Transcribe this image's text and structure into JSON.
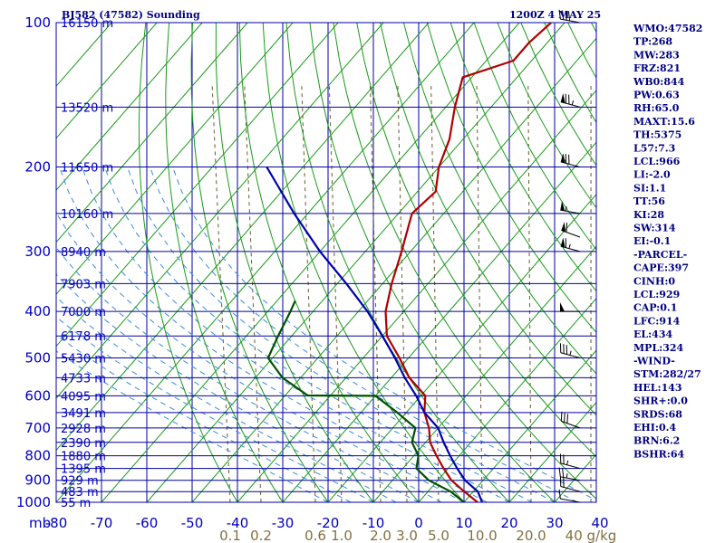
{
  "header": {
    "station": "BJ582 (47582) Sounding",
    "time": "1200Z  4 MAY 25"
  },
  "stats": [
    "WMO:47582",
    "TP:268",
    "MW:283",
    "FRZ:821",
    "WB0:844",
    "PW:0.63",
    "RH:65.0",
    "MAXT:15.6",
    "TH:5375",
    "L57:7.3",
    "LCL:966",
    "LI:-2.0",
    "SI:1.1",
    "TT:56",
    "KI:28",
    "SW:314",
    "EI:-0.1",
    "-PARCEL-",
    "CAPE:397",
    "CINH:0",
    "LCL:929",
    "CAP:0.1",
    "LFC:914",
    "EL:434",
    "MPL:324",
    "-WIND-",
    "STM:282/27",
    "HEL:143",
    "SHR+:0.0",
    "SRDS:68",
    "EHI:0.4",
    "BRN:6.2",
    "BSHR:64"
  ],
  "colors": {
    "isobar": "#0000a0",
    "isotherm": "#1a9a1a",
    "dry_adiabat": "#1a9a1a",
    "moist_adiabat": "#3a8ae0",
    "mixing_ratio": "#6a5a2a",
    "temperature": "#b00000",
    "dewpoint": "#005000",
    "parcel": "#0000b0",
    "wind_barb": "#000000"
  },
  "chart_data": {
    "type": "skew-t",
    "x_unit": "mb",
    "pressure_ticks": [
      100,
      200,
      300,
      400,
      500,
      600,
      700,
      800,
      900,
      1000
    ],
    "height_ticks": [
      {
        "p": 100,
        "label": "16150 m"
      },
      {
        "p": 150,
        "label": "13520 m"
      },
      {
        "p": 200,
        "label": "11650 m"
      },
      {
        "p": 250,
        "label": "10160 m"
      },
      {
        "p": 300,
        "label": "8940 m"
      },
      {
        "p": 350,
        "label": "7903 m"
      },
      {
        "p": 400,
        "label": "7000 m"
      },
      {
        "p": 450,
        "label": "6178 m"
      },
      {
        "p": 500,
        "label": "5430 m"
      },
      {
        "p": 550,
        "label": "4733 m"
      },
      {
        "p": 600,
        "label": "4095 m"
      },
      {
        "p": 650,
        "label": "3491 m"
      },
      {
        "p": 700,
        "label": "2928 m"
      },
      {
        "p": 750,
        "label": "2390 m"
      },
      {
        "p": 800,
        "label": "1880 m"
      },
      {
        "p": 850,
        "label": "1395 m"
      },
      {
        "p": 900,
        "label": "929 m"
      },
      {
        "p": 950,
        "label": "483 m"
      },
      {
        "p": 1000,
        "label": "55 m"
      }
    ],
    "temperature_ticks": [
      -80,
      -70,
      -60,
      -50,
      -40,
      -30,
      -20,
      -10,
      0,
      10,
      20,
      30,
      40
    ],
    "mixing_ratio_ticks": [
      {
        "label": "0.1",
        "x_at_bottom": 254
      },
      {
        "label": "0.2",
        "x_at_bottom": 288
      },
      {
        "label": "0.6",
        "x_at_bottom": 348
      },
      {
        "label": "1.0",
        "x_at_bottom": 377
      },
      {
        "label": "2.0",
        "x_at_bottom": 420
      },
      {
        "label": "3.0",
        "x_at_bottom": 449
      },
      {
        "label": "5.0",
        "x_at_bottom": 484
      },
      {
        "label": "10.0",
        "x_at_bottom": 532
      },
      {
        "label": "20.0",
        "x_at_bottom": 586
      },
      {
        "label": "40 g/kg",
        "x_at_bottom": 652
      }
    ],
    "series": [
      {
        "name": "temperature",
        "points": [
          [
            1000,
            13
          ],
          [
            950,
            8
          ],
          [
            900,
            3
          ],
          [
            850,
            -1
          ],
          [
            800,
            -5
          ],
          [
            750,
            -9
          ],
          [
            700,
            -12
          ],
          [
            650,
            -16
          ],
          [
            600,
            -19
          ],
          [
            550,
            -26
          ],
          [
            500,
            -32
          ],
          [
            450,
            -39
          ],
          [
            400,
            -44
          ],
          [
            350,
            -48
          ],
          [
            300,
            -52
          ],
          [
            250,
            -57
          ],
          [
            225,
            -56
          ],
          [
            200,
            -60
          ],
          [
            175,
            -63
          ],
          [
            150,
            -68
          ],
          [
            130,
            -72
          ],
          [
            120,
            -64
          ],
          [
            110,
            -64
          ],
          [
            100,
            -63
          ]
        ]
      },
      {
        "name": "dewpoint",
        "points": [
          [
            1000,
            10
          ],
          [
            950,
            5
          ],
          [
            900,
            -2
          ],
          [
            850,
            -7
          ],
          [
            800,
            -9
          ],
          [
            750,
            -13
          ],
          [
            700,
            -15
          ],
          [
            650,
            -22
          ],
          [
            600,
            -30
          ],
          [
            599,
            -45
          ],
          [
            550,
            -54
          ],
          [
            500,
            -61
          ],
          [
            450,
            -63
          ],
          [
            400,
            -65
          ],
          [
            380,
            -66
          ]
        ]
      },
      {
        "name": "parcel",
        "points": [
          [
            1000,
            14
          ],
          [
            950,
            11
          ],
          [
            900,
            6
          ],
          [
            850,
            2
          ],
          [
            800,
            -2
          ],
          [
            750,
            -6
          ],
          [
            700,
            -10
          ],
          [
            650,
            -16
          ],
          [
            600,
            -21
          ],
          [
            550,
            -27
          ],
          [
            500,
            -33
          ],
          [
            450,
            -40
          ],
          [
            400,
            -48
          ],
          [
            350,
            -58
          ],
          [
            300,
            -70
          ],
          [
            250,
            -83
          ],
          [
            200,
            -98
          ]
        ]
      }
    ],
    "wind_barbs": [
      {
        "p": 1000,
        "dir": 280,
        "spd": 10
      },
      {
        "p": 950,
        "dir": 285,
        "spd": 20
      },
      {
        "p": 900,
        "dir": 280,
        "spd": 25
      },
      {
        "p": 850,
        "dir": 285,
        "spd": 25
      },
      {
        "p": 700,
        "dir": 290,
        "spd": 30
      },
      {
        "p": 500,
        "dir": 285,
        "spd": 35
      },
      {
        "p": 400,
        "dir": 270,
        "spd": 50
      },
      {
        "p": 300,
        "dir": 285,
        "spd": 65
      },
      {
        "p": 280,
        "dir": 290,
        "spd": 60
      },
      {
        "p": 250,
        "dir": 280,
        "spd": 55
      },
      {
        "p": 200,
        "dir": 285,
        "spd": 70
      },
      {
        "p": 150,
        "dir": 285,
        "spd": 75
      },
      {
        "p": 100,
        "dir": 280,
        "spd": 40
      }
    ]
  }
}
